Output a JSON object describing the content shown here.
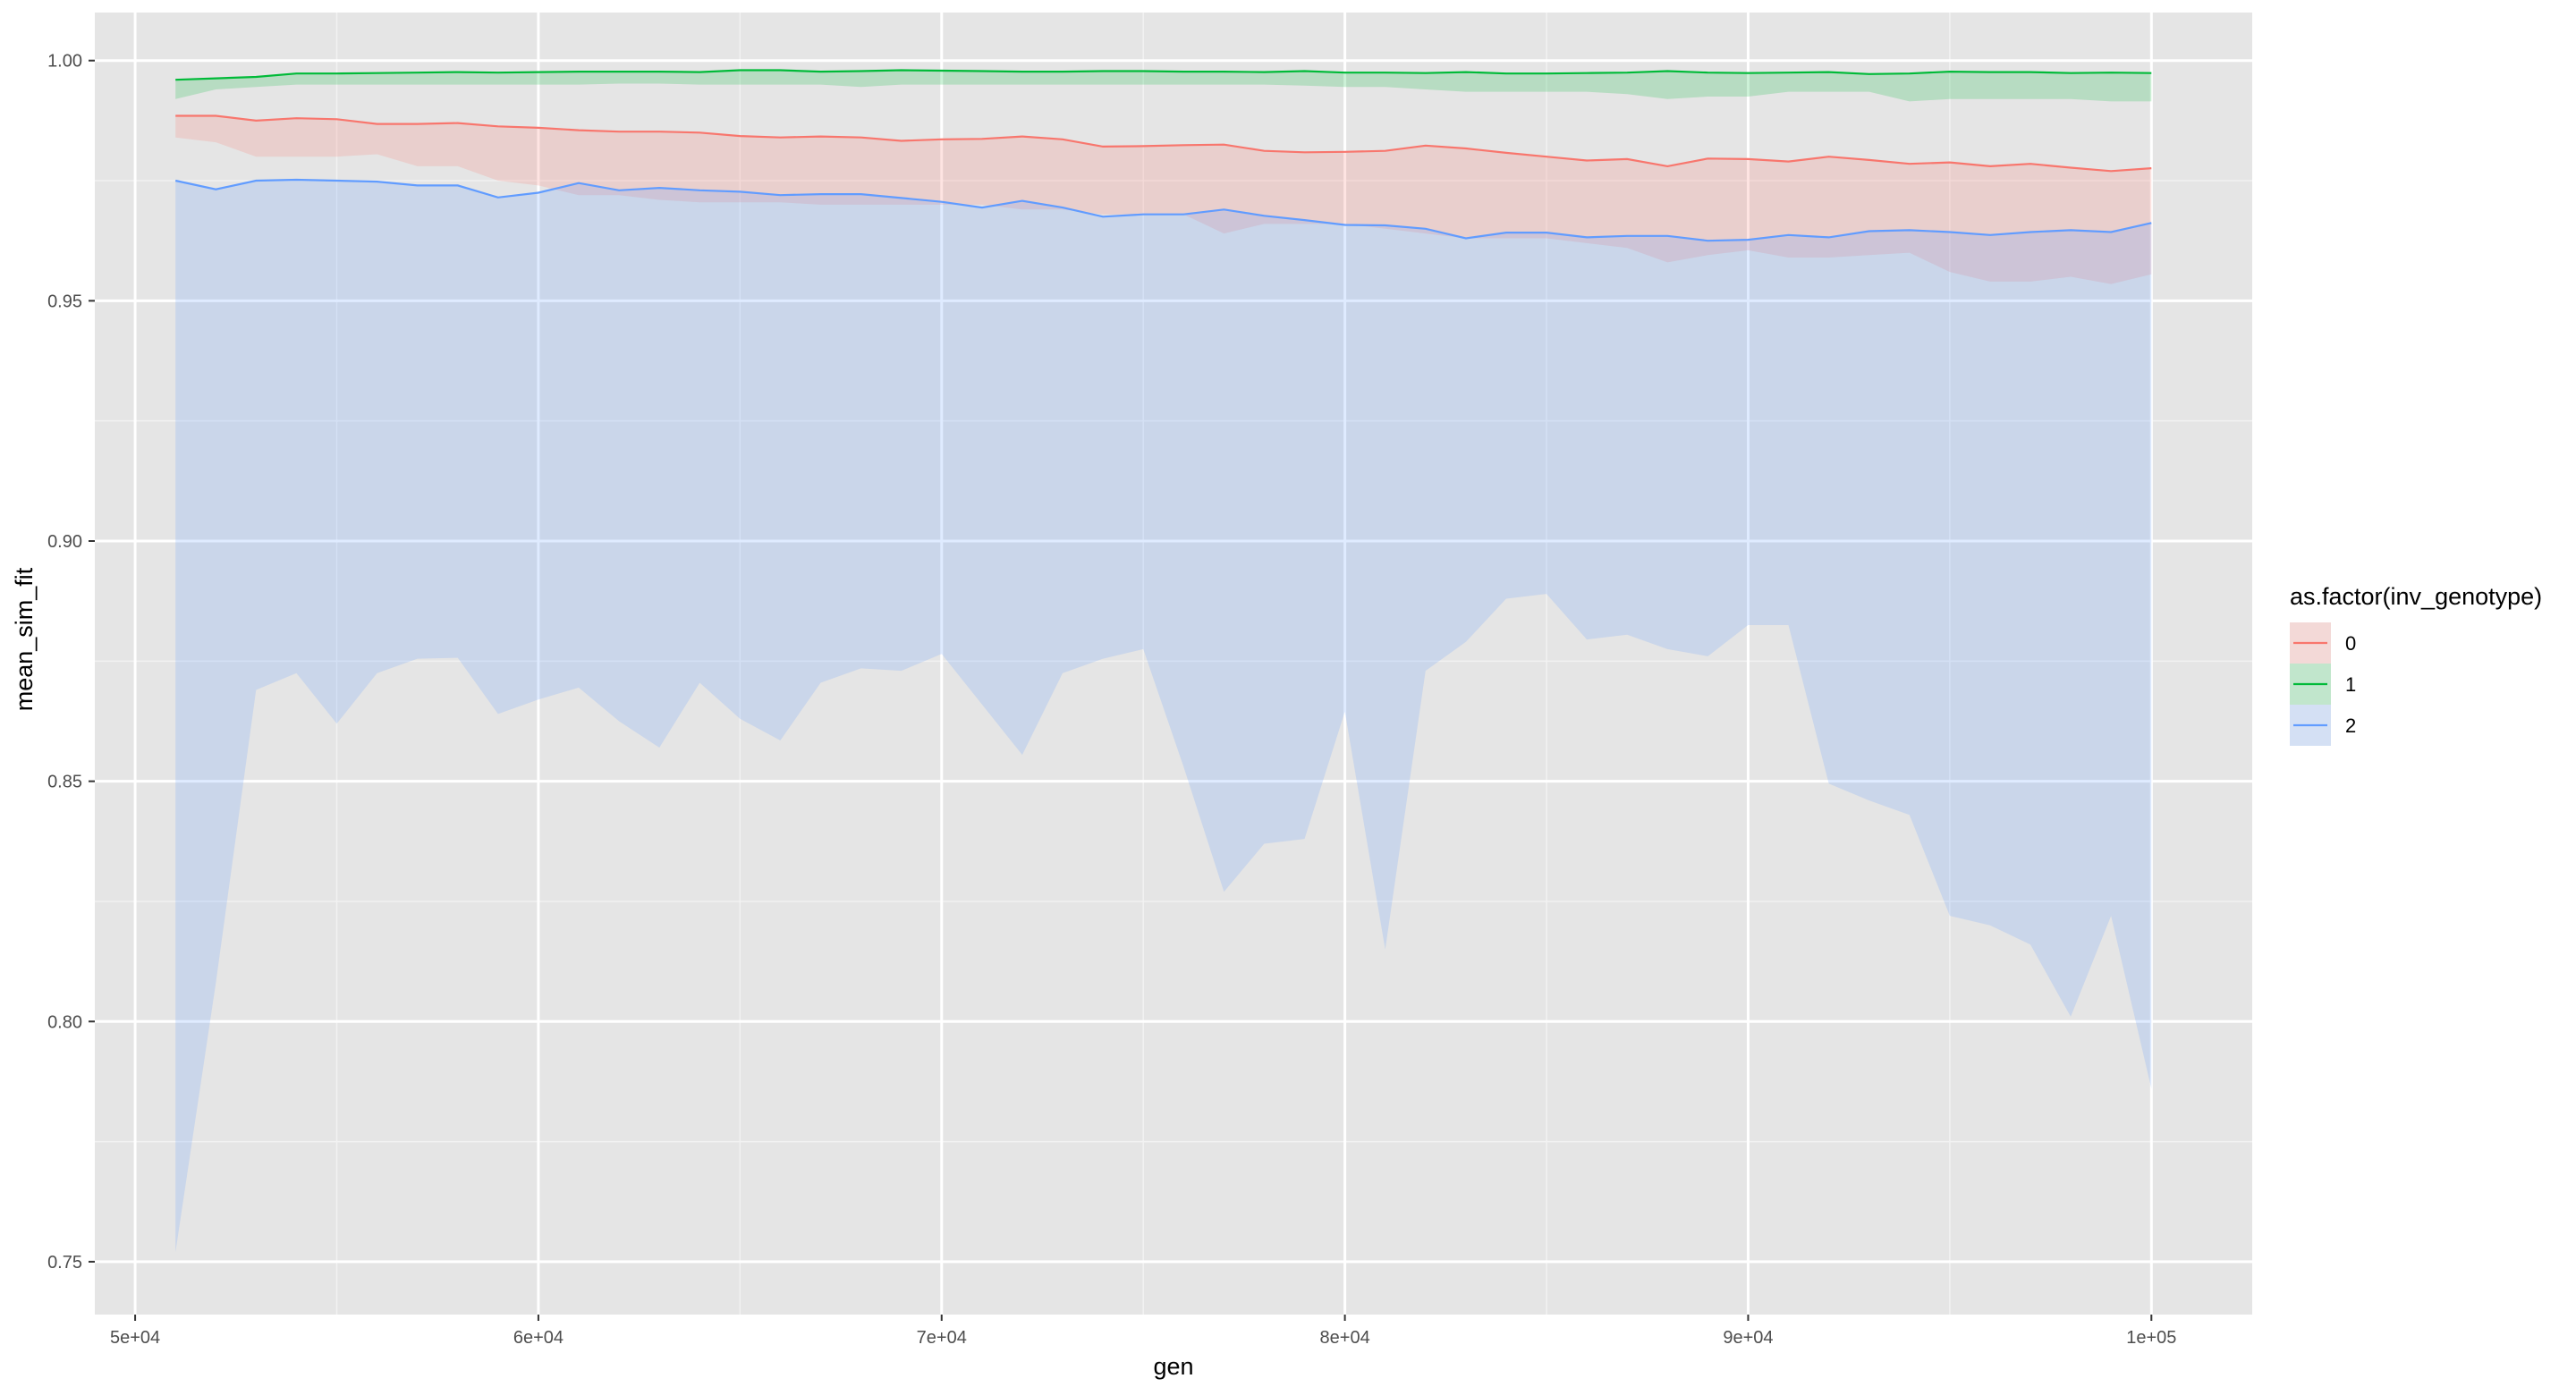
{
  "chart_data": {
    "type": "area",
    "xlabel": "gen",
    "ylabel": "mean_sim_fit",
    "xlim": [
      49000,
      102500
    ],
    "ylim": [
      0.739,
      1.01
    ],
    "x_ticks": [
      50000,
      60000,
      70000,
      80000,
      90000,
      100000
    ],
    "x_tick_labels": [
      "5e+04",
      "6e+04",
      "7e+04",
      "8e+04",
      "9e+04",
      "1e+05"
    ],
    "y_ticks": [
      0.75,
      0.8,
      0.85,
      0.9,
      0.95,
      1.0
    ],
    "y_tick_labels": [
      "0.75",
      "0.80",
      "0.85",
      "0.90",
      "0.95",
      "1.00"
    ],
    "grid": true,
    "legend": {
      "title": "as.factor(inv_genotype)",
      "placement": "right",
      "entries": [
        "0",
        "1",
        "2"
      ]
    },
    "x": [
      51000,
      52000,
      53000,
      54000,
      55000,
      56000,
      57000,
      58000,
      59000,
      60000,
      61000,
      62000,
      63000,
      64000,
      65000,
      66000,
      67000,
      68000,
      69000,
      70000,
      71000,
      72000,
      73000,
      74000,
      75000,
      76000,
      77000,
      78000,
      79000,
      80000,
      81000,
      82000,
      83000,
      84000,
      85000,
      86000,
      87000,
      88000,
      89000,
      90000,
      91000,
      92000,
      93000,
      94000,
      95000,
      96000,
      97000,
      98000,
      99000,
      100000
    ],
    "series": [
      {
        "name": "0",
        "color": "#F8766D",
        "values": [
          0.9885,
          0.9885,
          0.9875,
          0.988,
          0.9878,
          0.9868,
          0.9868,
          0.987,
          0.9863,
          0.986,
          0.9855,
          0.9852,
          0.9852,
          0.985,
          0.9843,
          0.984,
          0.9842,
          0.984,
          0.9833,
          0.9836,
          0.9837,
          0.9842,
          0.9836,
          0.9821,
          0.9822,
          0.9824,
          0.9825,
          0.9812,
          0.9809,
          0.981,
          0.9812,
          0.9823,
          0.9817,
          0.9808,
          0.98,
          0.9792,
          0.9795,
          0.978,
          0.9796,
          0.9795,
          0.979,
          0.98,
          0.9793,
          0.9785,
          0.9788,
          0.978,
          0.9785,
          0.9777,
          0.977,
          0.9776
        ],
        "lower": [
          0.984,
          0.983,
          0.98,
          0.98,
          0.98,
          0.9805,
          0.978,
          0.978,
          0.975,
          0.974,
          0.972,
          0.972,
          0.971,
          0.9705,
          0.9705,
          0.9705,
          0.97,
          0.97,
          0.97,
          0.97,
          0.97,
          0.969,
          0.969,
          0.968,
          0.968,
          0.968,
          0.964,
          0.966,
          0.966,
          0.966,
          0.965,
          0.964,
          0.963,
          0.963,
          0.963,
          0.962,
          0.961,
          0.958,
          0.9595,
          0.9605,
          0.959,
          0.959,
          0.9595,
          0.96,
          0.956,
          0.954,
          0.954,
          0.955,
          0.9535,
          0.9555
        ],
        "upper": [
          0.9885,
          0.9885,
          0.9875,
          0.988,
          0.9878,
          0.9868,
          0.9868,
          0.987,
          0.9863,
          0.986,
          0.9855,
          0.9852,
          0.9852,
          0.985,
          0.9843,
          0.984,
          0.9842,
          0.984,
          0.9833,
          0.9836,
          0.9837,
          0.9842,
          0.9836,
          0.9821,
          0.9822,
          0.9824,
          0.9825,
          0.9812,
          0.9809,
          0.981,
          0.9812,
          0.9823,
          0.9817,
          0.9808,
          0.98,
          0.9792,
          0.9795,
          0.978,
          0.9796,
          0.9795,
          0.979,
          0.98,
          0.9793,
          0.9785,
          0.9788,
          0.978,
          0.9785,
          0.9777,
          0.977,
          0.9776
        ]
      },
      {
        "name": "1",
        "color": "#00BA38",
        "values": [
          0.996,
          0.9963,
          0.9966,
          0.9973,
          0.9973,
          0.9974,
          0.9975,
          0.9976,
          0.9975,
          0.9976,
          0.9977,
          0.9977,
          0.9977,
          0.9976,
          0.998,
          0.998,
          0.9977,
          0.9978,
          0.998,
          0.9979,
          0.9978,
          0.9977,
          0.9977,
          0.9978,
          0.9978,
          0.9977,
          0.9977,
          0.9976,
          0.9978,
          0.9975,
          0.9975,
          0.9974,
          0.9976,
          0.9973,
          0.9973,
          0.9974,
          0.9975,
          0.9978,
          0.9975,
          0.9974,
          0.9975,
          0.9976,
          0.9972,
          0.9973,
          0.9977,
          0.9976,
          0.9976,
          0.9974,
          0.9975,
          0.9974
        ],
        "lower": [
          0.992,
          0.994,
          0.9945,
          0.995,
          0.995,
          0.995,
          0.995,
          0.995,
          0.995,
          0.995,
          0.995,
          0.9952,
          0.9952,
          0.995,
          0.995,
          0.995,
          0.995,
          0.9945,
          0.995,
          0.995,
          0.995,
          0.995,
          0.995,
          0.995,
          0.995,
          0.995,
          0.995,
          0.995,
          0.9948,
          0.9945,
          0.9945,
          0.994,
          0.9935,
          0.9935,
          0.9935,
          0.9935,
          0.993,
          0.992,
          0.9925,
          0.9925,
          0.9935,
          0.9935,
          0.9935,
          0.9915,
          0.992,
          0.992,
          0.992,
          0.992,
          0.9915,
          0.9915
        ],
        "upper": [
          0.996,
          0.9963,
          0.9966,
          0.9973,
          0.9973,
          0.9974,
          0.9975,
          0.9976,
          0.9975,
          0.9976,
          0.9977,
          0.9977,
          0.9977,
          0.9976,
          0.998,
          0.998,
          0.9977,
          0.9978,
          0.998,
          0.9979,
          0.9978,
          0.9977,
          0.9977,
          0.9978,
          0.9978,
          0.9977,
          0.9977,
          0.9976,
          0.9978,
          0.9975,
          0.9975,
          0.9974,
          0.9976,
          0.9973,
          0.9973,
          0.9974,
          0.9975,
          0.9978,
          0.9975,
          0.9974,
          0.9975,
          0.9976,
          0.9972,
          0.9973,
          0.9977,
          0.9976,
          0.9976,
          0.9974,
          0.9975,
          0.9974
        ]
      },
      {
        "name": "2",
        "color": "#619CFF",
        "values": [
          0.975,
          0.9732,
          0.975,
          0.9752,
          0.975,
          0.9748,
          0.974,
          0.974,
          0.9715,
          0.9725,
          0.9745,
          0.973,
          0.9735,
          0.973,
          0.9727,
          0.972,
          0.9722,
          0.9722,
          0.9714,
          0.9706,
          0.9694,
          0.9708,
          0.9694,
          0.9675,
          0.968,
          0.968,
          0.969,
          0.9677,
          0.9668,
          0.9658,
          0.9657,
          0.965,
          0.963,
          0.9642,
          0.9642,
          0.9632,
          0.9635,
          0.9635,
          0.9625,
          0.9627,
          0.9637,
          0.9632,
          0.9645,
          0.9647,
          0.9643,
          0.9637,
          0.9643,
          0.9647,
          0.9643,
          0.9662
        ],
        "lower": [
          0.752,
          0.808,
          0.869,
          0.8725,
          0.862,
          0.8725,
          0.8755,
          0.8757,
          0.864,
          0.867,
          0.8695,
          0.8625,
          0.857,
          0.8705,
          0.863,
          0.8585,
          0.8705,
          0.8735,
          0.873,
          0.8765,
          0.866,
          0.8555,
          0.8725,
          0.8755,
          0.8775,
          0.853,
          0.827,
          0.837,
          0.838,
          0.8645,
          0.815,
          0.873,
          0.879,
          0.888,
          0.889,
          0.8795,
          0.8805,
          0.8775,
          0.876,
          0.8825,
          0.8825,
          0.8495,
          0.846,
          0.843,
          0.822,
          0.82,
          0.816,
          0.801,
          0.822,
          0.786
        ],
        "upper": [
          0.975,
          0.9732,
          0.975,
          0.9752,
          0.975,
          0.9748,
          0.974,
          0.974,
          0.9715,
          0.9725,
          0.9745,
          0.973,
          0.9735,
          0.973,
          0.9727,
          0.972,
          0.9722,
          0.9722,
          0.9714,
          0.9706,
          0.9694,
          0.9708,
          0.9694,
          0.9675,
          0.968,
          0.968,
          0.969,
          0.9677,
          0.9668,
          0.9658,
          0.9657,
          0.965,
          0.963,
          0.9642,
          0.9642,
          0.9632,
          0.9635,
          0.9635,
          0.9625,
          0.9627,
          0.9637,
          0.9632,
          0.9645,
          0.9647,
          0.9643,
          0.9637,
          0.9643,
          0.9647,
          0.9643,
          0.9662
        ]
      }
    ]
  }
}
